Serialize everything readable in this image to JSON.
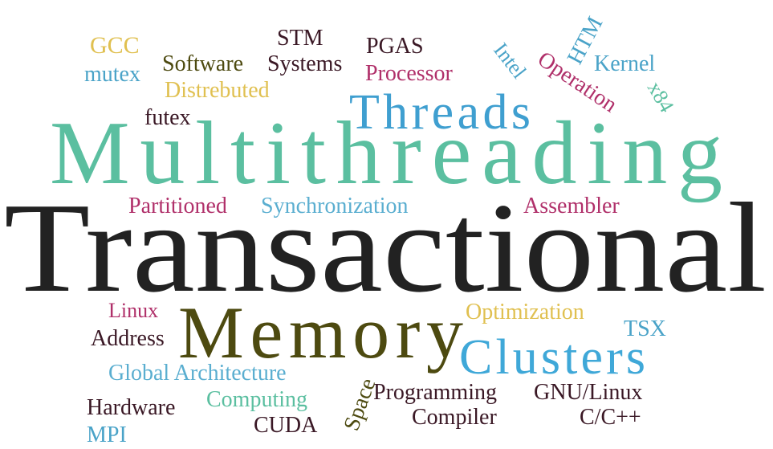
{
  "words": [
    "GCC",
    "mutex",
    "Software",
    "Distrebuted",
    "STM",
    "Systems",
    "PGAS",
    "Processor",
    "Intel",
    "HTM",
    "Operation",
    "Kernel",
    "x84",
    "Threads",
    "futex",
    "Multithreading",
    "Partitioned",
    "Synchronization",
    "Assembler",
    "Transactional",
    "Linux",
    "Address",
    "Memory",
    "Optimization",
    "TSX",
    "Clusters",
    "Global Architecture",
    "Computing",
    "Hardware",
    "MPI",
    "CUDA",
    "Space",
    "Programming",
    "GNU/Linux",
    "Compiler",
    "C/C++"
  ]
}
